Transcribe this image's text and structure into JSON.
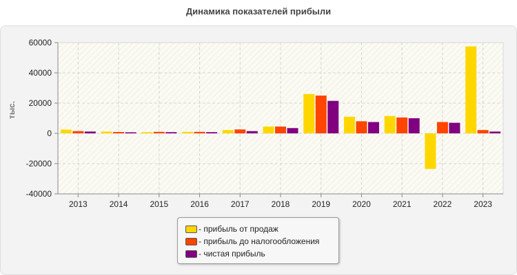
{
  "title": "Динамика показателей прибыли",
  "chart_data": {
    "type": "bar",
    "title": "Динамика показателей прибыли",
    "xlabel": "",
    "ylabel": "тыс.",
    "ylim": [
      -40000,
      60000
    ],
    "yticks": [
      "60000",
      "40000",
      "20000",
      "0",
      "-20000",
      "-40000"
    ],
    "grid": true,
    "legend_position": "bottom",
    "categories": [
      "2013",
      "2014",
      "2015",
      "2016",
      "2017",
      "2018",
      "2019",
      "2020",
      "2021",
      "2022",
      "2023"
    ],
    "series": [
      {
        "name": "- прибыль от продаж",
        "color": "#FFD700",
        "values": [
          2500,
          1200,
          800,
          1000,
          2200,
          4500,
          26000,
          11000,
          11500,
          -23500,
          57500
        ]
      },
      {
        "name": "- прибыль до налогообложения",
        "color": "#FF4500",
        "values": [
          1500,
          900,
          1000,
          1000,
          2600,
          4500,
          25000,
          8000,
          10500,
          7500,
          2200
        ]
      },
      {
        "name": "- чистая прибыль",
        "color": "#800080",
        "values": [
          1200,
          700,
          800,
          800,
          1500,
          3500,
          21500,
          7500,
          10000,
          7000,
          1200
        ]
      }
    ]
  }
}
